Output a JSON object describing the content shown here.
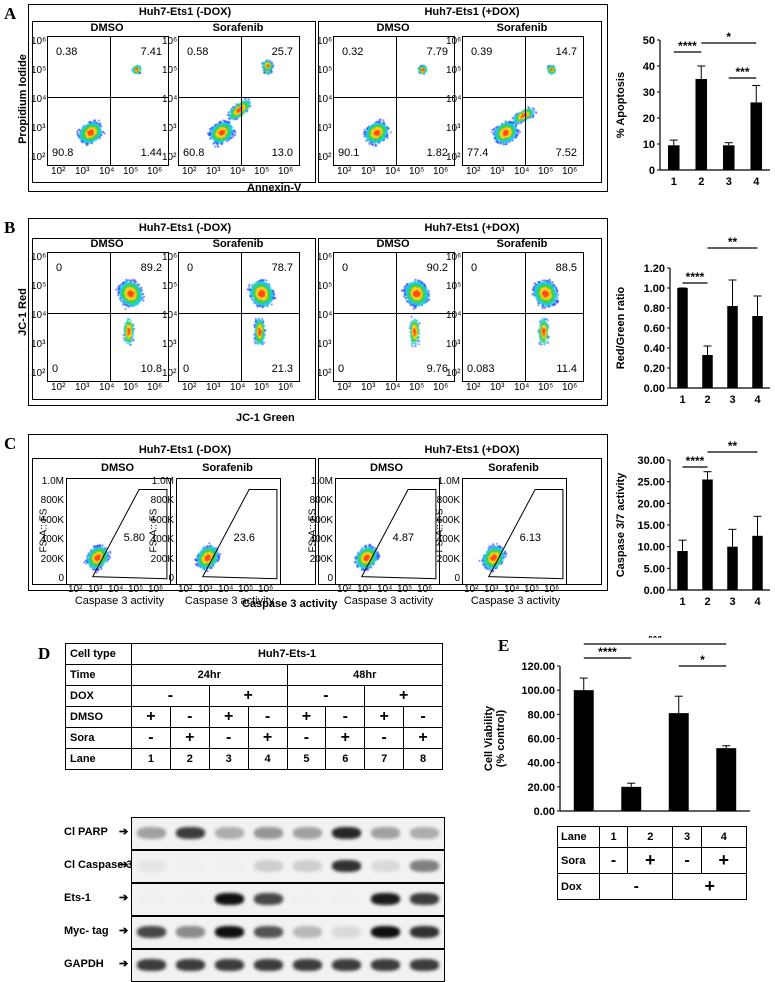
{
  "panels": {
    "A": {
      "letter": "A",
      "groups": [
        "Huh7-Ets1 (-DOX)",
        "Huh7-Ets1 (+DOX)"
      ],
      "plot_titles": [
        "DMSO",
        "Sorafenib",
        "DMSO",
        "Sorafenib"
      ],
      "y_title": "Propidium Iodide",
      "x_title": "Annexin-V",
      "quadrants": [
        [
          "0.38",
          "7.41",
          "90.8",
          "1.44"
        ],
        [
          "0.58",
          "25.7",
          "60.8",
          "13.0"
        ],
        [
          "0.32",
          "7.79",
          "90.1",
          "1.82"
        ],
        [
          "0.39",
          "14.7",
          "77.4",
          "7.52"
        ]
      ]
    },
    "B": {
      "letter": "B",
      "groups": [
        "Huh7-Ets1 (-DOX)",
        "Huh7-Ets1 (+DOX)"
      ],
      "plot_titles": [
        "DMSO",
        "Sorafenib",
        "DMSO",
        "Sorafenib"
      ],
      "y_title": "JC-1 Red",
      "x_title": "JC-1 Green",
      "quadrants": [
        [
          "0",
          "89.2",
          "0",
          "10.8"
        ],
        [
          "0",
          "78.7",
          "0",
          "21.3"
        ],
        [
          "0",
          "90.2",
          "0",
          "9.76"
        ],
        [
          "0",
          "88.5",
          "0.083",
          "11.4"
        ]
      ]
    },
    "C": {
      "letter": "C",
      "groups": [
        "Huh7-Ets1 (-DOX)",
        "Huh7-Ets1 (+DOX)"
      ],
      "plot_titles": [
        "DMSO",
        "Sorafenib",
        "DMSO",
        "Sorafenib"
      ],
      "y_title": "FS-A:: FS",
      "x_title": "Caspase 3 activity",
      "x_title_outer": "Caspase 3 activity",
      "gates": [
        "5.80",
        "23.6",
        "4.87",
        "6.13"
      ],
      "y_ticks": [
        "1.0M",
        "800K",
        "600K",
        "400K",
        "200K",
        "0"
      ]
    },
    "D": {
      "letter": "D",
      "rows": {
        "cell_type_label": "Cell type",
        "cell_type_value": "Huh7-Ets-1",
        "time_label": "Time",
        "time_values": [
          "24hr",
          "48hr"
        ],
        "dox_label": "DOX",
        "dox_values": [
          "-",
          "+",
          "-",
          "+"
        ],
        "dmso_label": "DMSO",
        "dmso_values": [
          "+",
          "-",
          "+",
          "-",
          "+",
          "-",
          "+",
          "-"
        ],
        "sora_label": "Sora",
        "sora_values": [
          "-",
          "+",
          "-",
          "+",
          "-",
          "+",
          "-",
          "+"
        ],
        "lane_label": "Lane",
        "lane_values": [
          "1",
          "2",
          "3",
          "4",
          "5",
          "6",
          "7",
          "8"
        ]
      },
      "blots": [
        {
          "label": "Cl PARP",
          "intensity": [
            0.35,
            0.8,
            0.3,
            0.4,
            0.35,
            0.9,
            0.35,
            0.3
          ]
        },
        {
          "label": "Cl Caspase 3",
          "intensity": [
            0.05,
            0.0,
            0.0,
            0.15,
            0.15,
            0.85,
            0.1,
            0.5
          ]
        },
        {
          "label": "Ets-1",
          "intensity": [
            0.0,
            0.0,
            1.0,
            0.75,
            0.0,
            0.0,
            0.95,
            0.8
          ]
        },
        {
          "label": "Myc- tag",
          "intensity": [
            0.75,
            0.45,
            1.0,
            0.7,
            0.25,
            0.1,
            1.0,
            0.85
          ]
        },
        {
          "label": "GAPDH",
          "intensity": [
            0.8,
            0.8,
            0.8,
            0.8,
            0.8,
            0.8,
            0.8,
            0.8
          ]
        }
      ]
    },
    "E": {
      "letter": "E",
      "table": {
        "lane_label": "Lane",
        "lane_values": [
          "1",
          "2",
          "3",
          "4"
        ],
        "sora_label": "Sora",
        "sora_values": [
          "-",
          "+",
          "-",
          "+"
        ],
        "dox_label": "Dox",
        "dox_values": [
          "-",
          "+"
        ]
      }
    }
  },
  "chart_data": [
    {
      "id": "A",
      "type": "bar",
      "categories": [
        "1",
        "2",
        "3",
        "4"
      ],
      "values": [
        9.5,
        35,
        9.5,
        26
      ],
      "errors": [
        2,
        5,
        1,
        6.5
      ],
      "ylabel": "% Apoptosis",
      "ylim": [
        0,
        50
      ],
      "yticks": [
        "0",
        "10",
        "20",
        "30",
        "40",
        "50"
      ],
      "sig": [
        {
          "from": 0,
          "to": 1,
          "label": "****"
        },
        {
          "from": 1,
          "to": 3,
          "label": "*"
        },
        {
          "from": 2,
          "to": 3,
          "label": "***"
        }
      ]
    },
    {
      "id": "B",
      "type": "bar",
      "categories": [
        "1",
        "2",
        "3",
        "4"
      ],
      "values": [
        1.0,
        0.33,
        0.82,
        0.72
      ],
      "errors": [
        0.0,
        0.09,
        0.26,
        0.2
      ],
      "ylabel": "Red/Green ratio",
      "ylim": [
        0,
        1.2
      ],
      "yticks": [
        "0.00",
        "0.20",
        "0.40",
        "0.60",
        "0.80",
        "1.00",
        "1.20"
      ],
      "sig": [
        {
          "from": 0,
          "to": 1,
          "label": "****"
        },
        {
          "from": 1,
          "to": 3,
          "label": "**"
        }
      ]
    },
    {
      "id": "C",
      "type": "bar",
      "categories": [
        "1",
        "2",
        "3",
        "4"
      ],
      "values": [
        9,
        25.5,
        10,
        12.5
      ],
      "errors": [
        2.5,
        1.8,
        4,
        4.5
      ],
      "ylabel": "Caspase 3/7 activity",
      "ylim": [
        0,
        30
      ],
      "yticks": [
        "0.00",
        "5.00",
        "10.00",
        "15.00",
        "20.00",
        "25.00",
        "30.00"
      ],
      "sig": [
        {
          "from": 0,
          "to": 1,
          "label": "****"
        },
        {
          "from": 1,
          "to": 3,
          "label": "**"
        }
      ]
    },
    {
      "id": "E",
      "type": "bar",
      "categories": [
        "1",
        "2",
        "3",
        "4"
      ],
      "values": [
        100,
        20,
        81,
        52
      ],
      "errors": [
        10,
        3,
        14,
        2
      ],
      "ylabel": "Cell Viability (% control)",
      "ylabel_lines": [
        "Cell Viability",
        "(% control)"
      ],
      "ylim": [
        0,
        120
      ],
      "yticks": [
        "0.00",
        "20.00",
        "40.00",
        "60.00",
        "80.00",
        "100.00",
        "120.00"
      ],
      "sig": [
        {
          "from": 0,
          "to": 1,
          "label": "****"
        },
        {
          "from": 0,
          "to": 3,
          "label": "***"
        },
        {
          "from": 2,
          "to": 3,
          "label": "*"
        }
      ]
    }
  ]
}
